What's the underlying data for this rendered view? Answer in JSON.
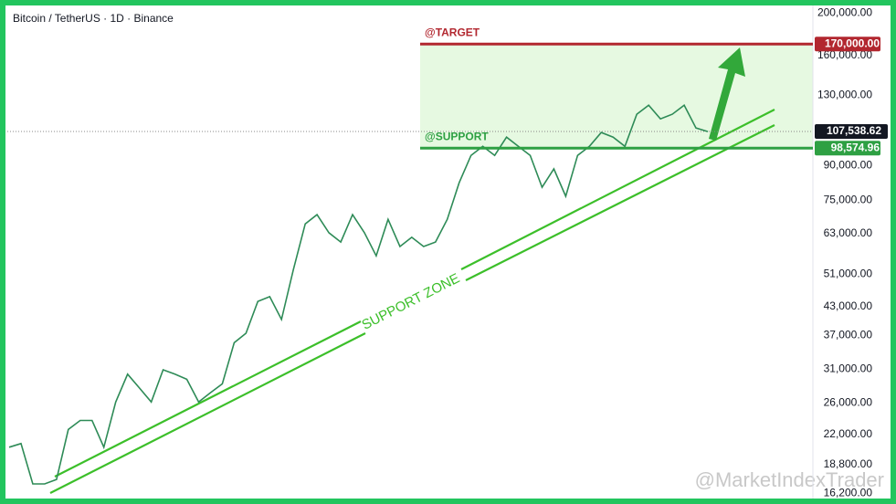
{
  "header": "Bitcoin / TetherUS · 1D · Binance",
  "watermark": "@MarketIndexTrader",
  "chart_data": {
    "type": "line",
    "log_scale": true,
    "color": "#2e8b57",
    "ylim": [
      15600,
      206000
    ],
    "yticks": [
      {
        "value": 200000,
        "label": "200,000.00"
      },
      {
        "value": 160000,
        "label": "160,000.00"
      },
      {
        "value": 130000,
        "label": "130,000.00"
      },
      {
        "value": 90000,
        "label": "90,000.00"
      },
      {
        "value": 75000,
        "label": "75,000.00"
      },
      {
        "value": 63000,
        "label": "63,000.00"
      },
      {
        "value": 51000,
        "label": "51,000.00"
      },
      {
        "value": 43000,
        "label": "43,000.00"
      },
      {
        "value": 37000,
        "label": "37,000.00"
      },
      {
        "value": 31000,
        "label": "31,000.00"
      },
      {
        "value": 26000,
        "label": "26,000.00"
      },
      {
        "value": 22000,
        "label": "22,000.00"
      },
      {
        "value": 18800,
        "label": "18,800.00"
      },
      {
        "value": 16200,
        "label": "16,200.00"
      }
    ],
    "values": [
      20600,
      21000,
      17000,
      17000,
      17400,
      22600,
      23700,
      23700,
      20600,
      26100,
      30200,
      28100,
      26100,
      30900,
      30200,
      29400,
      26100,
      27400,
      28700,
      35600,
      37400,
      44200,
      45300,
      40200,
      52200,
      66300,
      69600,
      63300,
      60300,
      69600,
      63300,
      56100,
      67900,
      58900,
      61800,
      58900,
      60300,
      67900,
      82200,
      94900,
      99500,
      94900,
      104400,
      99500,
      94900,
      80300,
      88400,
      76600,
      94900,
      99500,
      107000,
      104400,
      99500,
      117700,
      123400,
      114900,
      117700,
      123400,
      109500,
      107500
    ],
    "levels": [
      {
        "name": "@TARGET",
        "value": 170000,
        "value_label": "170,000.00",
        "color": "#b2272f"
      },
      {
        "name": "@SUPPORT",
        "value": 98574.96,
        "value_label": "98,574.96",
        "color": "#2ea043"
      }
    ],
    "last_price": {
      "value": 107538.62,
      "value_label": "107,538.62"
    },
    "zone_label": "SUPPORT ZONE"
  }
}
